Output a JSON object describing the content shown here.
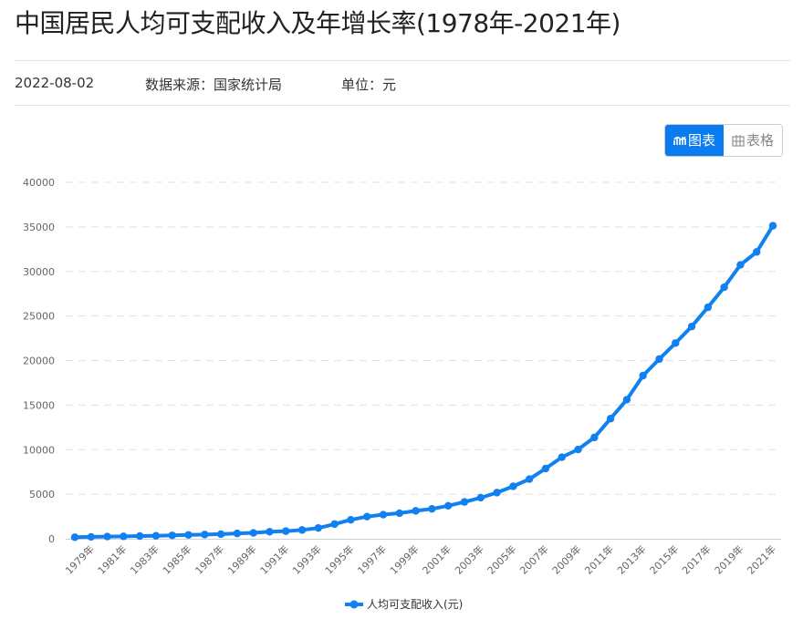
{
  "header": {
    "title": "中国居民人均可支配收入及年增长率(1978年-2021年)",
    "date": "2022-08-02",
    "source": "数据来源：国家统计局",
    "unit": "单位：元"
  },
  "view_toggle": {
    "chart_label": "图表",
    "table_label": "表格",
    "chart_icon": "line-chart-icon",
    "table_icon": "table-icon",
    "active": "chart"
  },
  "colors": {
    "accent": "#0a7cf0",
    "series": "#1180f0",
    "grid": "#e0e0e0",
    "axis_text": "#666666"
  },
  "chart_data": {
    "type": "line",
    "title": "中国居民人均可支配收入及年增长率(1978年-2021年)",
    "xlabel": "",
    "ylabel": "",
    "ylim": [
      0,
      40000
    ],
    "yticks": [
      0,
      5000,
      10000,
      15000,
      20000,
      25000,
      30000,
      35000,
      40000
    ],
    "grid": true,
    "legend_position": "bottom",
    "x": [
      "1978年",
      "1979年",
      "1980年",
      "1981年",
      "1982年",
      "1983年",
      "1984年",
      "1985年",
      "1986年",
      "1987年",
      "1988年",
      "1989年",
      "1990年",
      "1991年",
      "1992年",
      "1993年",
      "1994年",
      "1995年",
      "1996年",
      "1997年",
      "1998年",
      "1999年",
      "2000年",
      "2001年",
      "2002年",
      "2003年",
      "2004年",
      "2005年",
      "2006年",
      "2007年",
      "2008年",
      "2009年",
      "2010年",
      "2011年",
      "2012年",
      "2013年",
      "2014年",
      "2015年",
      "2016年",
      "2017年",
      "2018年",
      "2019年",
      "2020年",
      "2021年"
    ],
    "x_tick_labels_shown": [
      "1979年",
      "1981年",
      "1983年",
      "1985年",
      "1987年",
      "1989年",
      "1991年",
      "1993年",
      "1995年",
      "1997年",
      "1999年",
      "2001年",
      "2003年",
      "2005年",
      "2007年",
      "2009年",
      "2011年",
      "2013年",
      "2015年",
      "2017年",
      "2019年",
      "2021年"
    ],
    "series": [
      {
        "name": "人均可支配收入(元)",
        "values": [
          171,
          212,
          247,
          271,
          306,
          333,
          381,
          433,
          472,
          517,
          601,
          660,
          791,
          856,
          985,
          1212,
          1649,
          2131,
          2488,
          2706,
          2873,
          3132,
          3359,
          3699,
          4132,
          4608,
          5178,
          5884,
          6694,
          7880,
          9151,
          10021,
          11369,
          13480,
          15612,
          18311,
          20167,
          21966,
          23821,
          25974,
          28228,
          30733,
          32189,
          35128
        ]
      }
    ]
  },
  "legend": {
    "label": "人均可支配收入(元)"
  }
}
